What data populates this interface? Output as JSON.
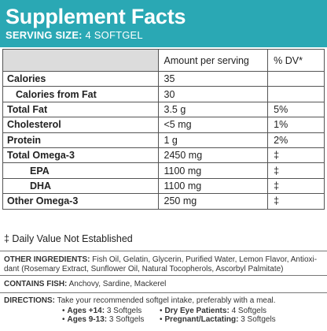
{
  "header": {
    "title": "Supplement Facts",
    "serving_label": "SERVING SIZE:",
    "serving_value": "4 SOFTGEL"
  },
  "table": {
    "col_amount": "Amount per serving",
    "col_dv": "% DV*",
    "rows": [
      {
        "name": "Calories",
        "amount": "35",
        "dv": ""
      },
      {
        "name": "Calories from Fat",
        "amount": "30",
        "dv": ""
      },
      {
        "name": "Total Fat",
        "amount": "3.5 g",
        "dv": "5%"
      },
      {
        "name": "Cholesterol",
        "amount": "<5 mg",
        "dv": "1%"
      },
      {
        "name": "Protein",
        "amount": "1 g",
        "dv": "2%"
      },
      {
        "name": "Total Omega-3",
        "amount": "2450 mg",
        "dv": "‡"
      },
      {
        "name": "EPA",
        "amount": "1100 mg",
        "dv": "‡"
      },
      {
        "name": "DHA",
        "amount": "1100 mg",
        "dv": "‡"
      },
      {
        "name": "Other Omega-3",
        "amount": "250 mg",
        "dv": "‡"
      }
    ]
  },
  "footnote": "‡ Daily Value Not Established",
  "ingredients": {
    "label": "OTHER INGREDIENTS:",
    "text_line1": "Fish Oil, Gelatin, Glycerin, Purified Water, Lemon Flavor, Antioxi-",
    "text_line2": "dant (Rosemary Extract, Sunflower Oil, Natural Tocopherols, Ascorbyl Palmitate)"
  },
  "contains": {
    "label": "CONTAINS FISH:",
    "text": "Anchovy, Sardine, Mackerel"
  },
  "directions": {
    "label": "DIRECTIONS:",
    "text": "Take your recommended softgel intake, preferably with a meal.",
    "items": [
      {
        "label": "Ages +14:",
        "value": "3 Softgels"
      },
      {
        "label": "Ages 9-13:",
        "value": "3 Softgels"
      },
      {
        "label": "Dry Eye Patients:",
        "value": "4 Softgels"
      },
      {
        "label": "Pregnant/Lactating:",
        "value": "3 Softgels"
      }
    ]
  },
  "colors": {
    "header_bg": "#2aa8b4",
    "header_text": "#ffffff"
  }
}
